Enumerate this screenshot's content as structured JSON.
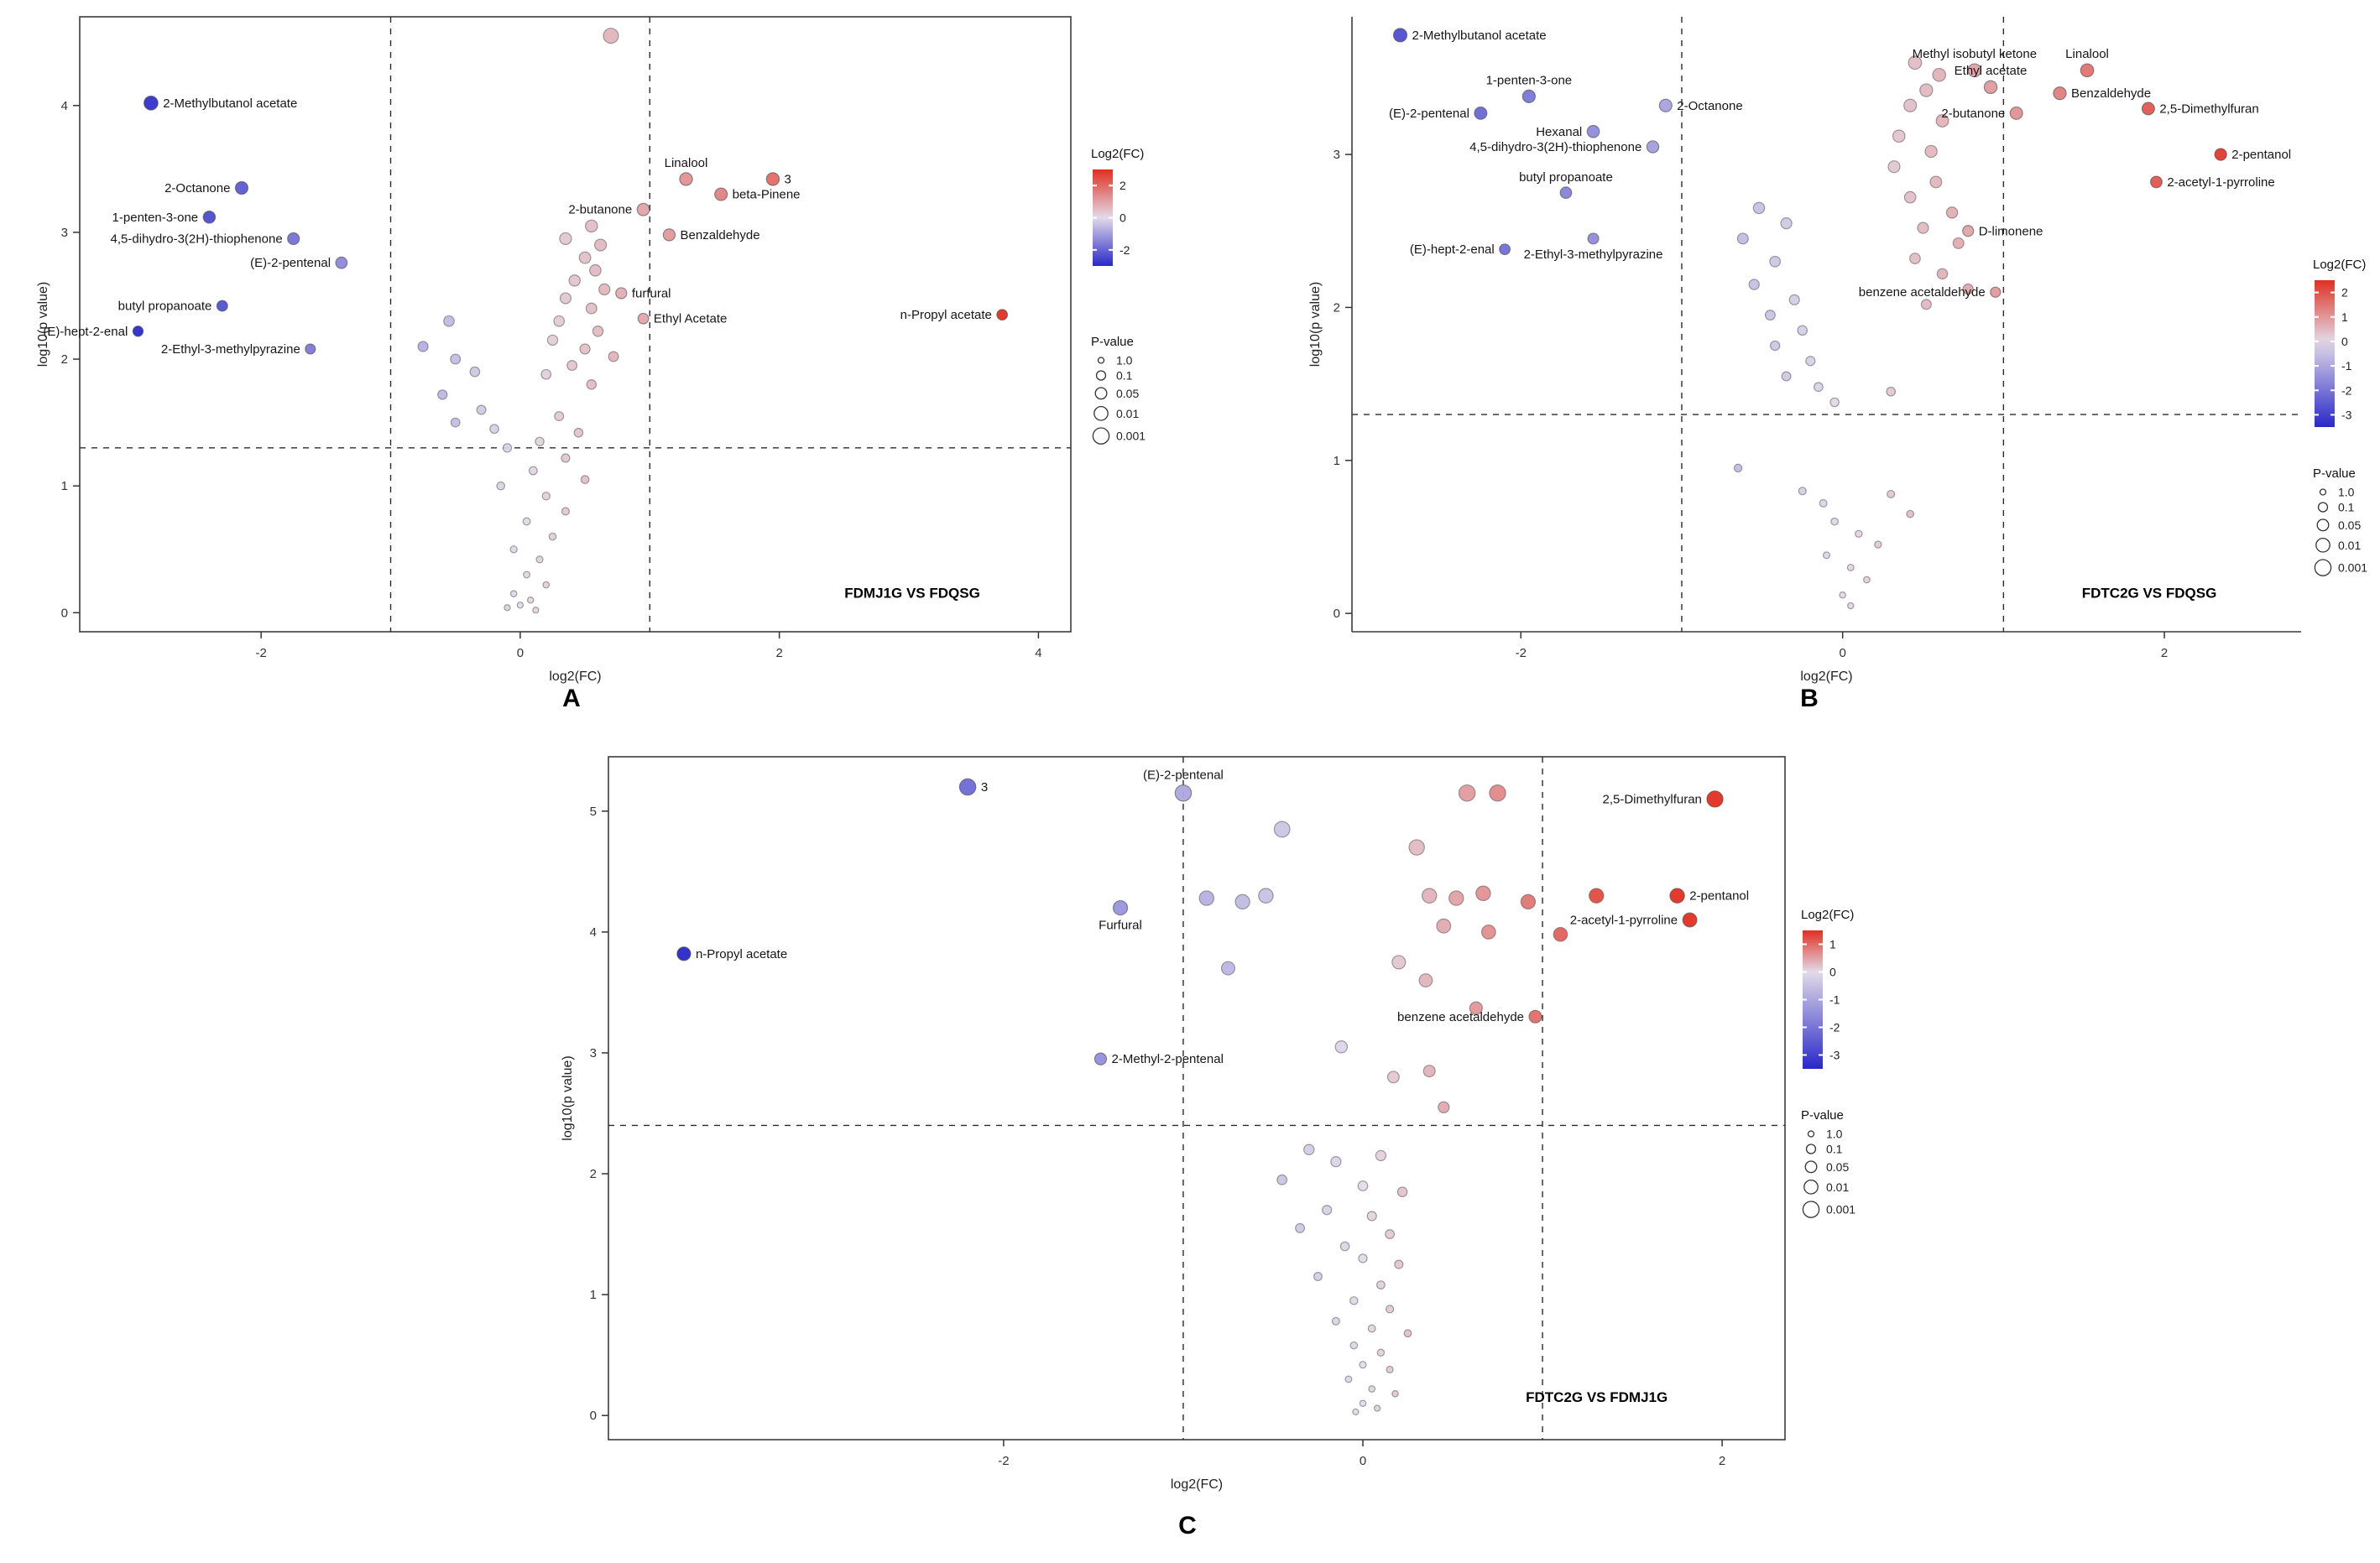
{
  "figure_background": "#ffffff",
  "color_scale": {
    "high": "#e03022",
    "mid": "#e2dae8",
    "low": "#2828c8"
  },
  "chart_data": [
    {
      "type": "scatter",
      "letter": "A",
      "title": "FDMJ1G VS FDQSG",
      "xlabel": "log2(FC)",
      "ylabel": "log10(p value)",
      "xlim": [
        -3.4,
        4.25
      ],
      "ylim": [
        -0.15,
        4.7
      ],
      "xticks": [
        -2,
        0,
        2,
        4
      ],
      "yticks": [
        0,
        1,
        2,
        3,
        4
      ],
      "vlines": [
        -1,
        1
      ],
      "hline": 1.3,
      "box": true,
      "color_domain": [
        -3,
        3
      ],
      "legend": {
        "color_title": "Log2(FC)",
        "color_ticks": [
          2,
          0,
          -2
        ],
        "size_title": "P-value",
        "size_ticks": [
          "1.0",
          "0.1",
          "0.05",
          "0.01",
          "0.001"
        ]
      },
      "labeled_points": [
        {
          "x": -2.85,
          "y": 4.02,
          "label": "2-Methylbutanol acetate",
          "pos": "right"
        },
        {
          "x": -2.15,
          "y": 3.35,
          "label": "2-Octanone",
          "pos": "left"
        },
        {
          "x": -2.4,
          "y": 3.12,
          "label": "1-penten-3-one",
          "pos": "left"
        },
        {
          "x": -1.75,
          "y": 2.95,
          "label": "4,5-dihydro-3(2H)-thiophenone",
          "pos": "left"
        },
        {
          "x": -1.38,
          "y": 2.76,
          "label": "(E)-2-pentenal",
          "pos": "left"
        },
        {
          "x": -2.3,
          "y": 2.42,
          "label": "butyl propanoate",
          "pos": "left"
        },
        {
          "x": -2.95,
          "y": 2.22,
          "label": "(E)-hept-2-enal",
          "pos": "left"
        },
        {
          "x": -1.62,
          "y": 2.08,
          "label": "2-Ethyl-3-methylpyrazine",
          "pos": "left"
        },
        {
          "x": 1.28,
          "y": 3.42,
          "label": "Linalool",
          "pos": "top"
        },
        {
          "x": 1.55,
          "y": 3.3,
          "label": "beta-Pinene",
          "pos": "right"
        },
        {
          "x": 0.95,
          "y": 3.18,
          "label": "2-butanone",
          "pos": "left"
        },
        {
          "x": 1.15,
          "y": 2.98,
          "label": "Benzaldehyde",
          "pos": "right"
        },
        {
          "x": 0.78,
          "y": 2.52,
          "label": "furfural",
          "pos": "right"
        },
        {
          "x": 0.95,
          "y": 2.32,
          "label": "Ethyl Acetate",
          "pos": "right"
        },
        {
          "x": 3.72,
          "y": 2.35,
          "label": "n-Propyl acetate",
          "pos": "left"
        },
        {
          "x": 1.95,
          "y": 3.42,
          "label": "3",
          "pos": "right"
        }
      ],
      "points": [
        [
          0.7,
          4.55
        ],
        [
          0.55,
          3.05
        ],
        [
          0.35,
          2.95
        ],
        [
          0.62,
          2.9
        ],
        [
          0.5,
          2.8
        ],
        [
          0.58,
          2.7
        ],
        [
          0.42,
          2.62
        ],
        [
          0.65,
          2.55
        ],
        [
          0.35,
          2.48
        ],
        [
          0.55,
          2.4
        ],
        [
          0.3,
          2.3
        ],
        [
          0.6,
          2.22
        ],
        [
          0.25,
          2.15
        ],
        [
          0.5,
          2.08
        ],
        [
          0.72,
          2.02
        ],
        [
          0.4,
          1.95
        ],
        [
          0.2,
          1.88
        ],
        [
          0.55,
          1.8
        ],
        [
          -0.55,
          2.3
        ],
        [
          -0.75,
          2.1
        ],
        [
          -0.5,
          2.0
        ],
        [
          -0.35,
          1.9
        ],
        [
          -0.6,
          1.72
        ],
        [
          -0.3,
          1.6
        ],
        [
          -0.5,
          1.5
        ],
        [
          -0.2,
          1.45
        ],
        [
          0.3,
          1.55
        ],
        [
          0.45,
          1.42
        ],
        [
          0.15,
          1.35
        ],
        [
          -0.1,
          1.3
        ],
        [
          0.35,
          1.22
        ],
        [
          0.1,
          1.12
        ],
        [
          0.5,
          1.05
        ],
        [
          -0.15,
          1.0
        ],
        [
          0.2,
          0.92
        ],
        [
          0.35,
          0.8
        ],
        [
          0.05,
          0.72
        ],
        [
          0.25,
          0.6
        ],
        [
          -0.05,
          0.5
        ],
        [
          0.15,
          0.42
        ],
        [
          0.05,
          0.3
        ],
        [
          0.2,
          0.22
        ],
        [
          -0.05,
          0.15
        ],
        [
          0.08,
          0.1
        ],
        [
          0.0,
          0.06
        ],
        [
          -0.1,
          0.04
        ],
        [
          0.12,
          0.02
        ]
      ]
    },
    {
      "type": "scatter",
      "letter": "B",
      "title": "FDTC2G VS FDQSG",
      "xlabel": "log2(FC)",
      "ylabel": "log10(p value)",
      "xlim": [
        -3.05,
        2.85
      ],
      "ylim": [
        -0.12,
        3.9
      ],
      "xticks": [
        -2,
        0,
        2
      ],
      "yticks": [
        0,
        1,
        2,
        3
      ],
      "vlines": [
        -1,
        1
      ],
      "hline": 1.3,
      "box": false,
      "color_domain": [
        -3.5,
        2.5
      ],
      "legend": {
        "color_title": "Log2(FC)",
        "color_ticks": [
          2,
          1,
          0,
          -1,
          -2,
          -3
        ],
        "size_title": "P-value",
        "size_ticks": [
          "1.0",
          "0.1",
          "0.05",
          "0.01",
          "0.001"
        ]
      },
      "labeled_points": [
        {
          "x": -2.75,
          "y": 3.78,
          "label": "2-Methylbutanol acetate",
          "pos": "right"
        },
        {
          "x": -1.95,
          "y": 3.38,
          "label": "1-penten-3-one",
          "pos": "top"
        },
        {
          "x": -2.25,
          "y": 3.27,
          "label": "(E)-2-pentenal",
          "pos": "left"
        },
        {
          "x": -1.1,
          "y": 3.32,
          "label": "2-Octanone",
          "pos": "right"
        },
        {
          "x": -1.55,
          "y": 3.15,
          "label": "Hexanal",
          "pos": "left"
        },
        {
          "x": -1.18,
          "y": 3.05,
          "label": "4,5-dihydro-3(2H)-thiophenone",
          "pos": "left"
        },
        {
          "x": -1.72,
          "y": 2.75,
          "label": "butyl propanoate",
          "pos": "top"
        },
        {
          "x": -1.55,
          "y": 2.45,
          "label": "2-Ethyl-3-methylpyrazine",
          "pos": "bottom"
        },
        {
          "x": -2.1,
          "y": 2.38,
          "label": "(E)-hept-2-enal",
          "pos": "left"
        },
        {
          "x": 0.82,
          "y": 3.55,
          "label": "Methyl isobutyl ketone",
          "pos": "top"
        },
        {
          "x": 1.52,
          "y": 3.55,
          "label": "Linalool",
          "pos": "top"
        },
        {
          "x": 0.92,
          "y": 3.44,
          "label": "Ethyl acetate",
          "pos": "top"
        },
        {
          "x": 1.35,
          "y": 3.4,
          "label": "Benzaldehyde",
          "pos": "right"
        },
        {
          "x": 1.08,
          "y": 3.27,
          "label": "2-butanone",
          "pos": "left"
        },
        {
          "x": 1.9,
          "y": 3.3,
          "label": "2,5-Dimethylfuran",
          "pos": "right"
        },
        {
          "x": 2.35,
          "y": 3.0,
          "label": "2-pentanol",
          "pos": "right"
        },
        {
          "x": 1.95,
          "y": 2.82,
          "label": "2-acetyl-1-pyrroline",
          "pos": "right"
        },
        {
          "x": 0.78,
          "y": 2.5,
          "label": "D-limonene",
          "pos": "right"
        },
        {
          "x": 0.95,
          "y": 2.1,
          "label": "benzene acetaldehyde",
          "pos": "left"
        }
      ],
      "points": [
        [
          0.45,
          3.6
        ],
        [
          0.6,
          3.52
        ],
        [
          0.52,
          3.42
        ],
        [
          0.42,
          3.32
        ],
        [
          0.62,
          3.22
        ],
        [
          0.35,
          3.12
        ],
        [
          0.55,
          3.02
        ],
        [
          0.32,
          2.92
        ],
        [
          0.58,
          2.82
        ],
        [
          0.42,
          2.72
        ],
        [
          0.68,
          2.62
        ],
        [
          0.5,
          2.52
        ],
        [
          0.72,
          2.42
        ],
        [
          0.45,
          2.32
        ],
        [
          0.62,
          2.22
        ],
        [
          0.78,
          2.12
        ],
        [
          0.52,
          2.02
        ],
        [
          -0.52,
          2.65
        ],
        [
          -0.35,
          2.55
        ],
        [
          -0.62,
          2.45
        ],
        [
          -0.42,
          2.3
        ],
        [
          -0.55,
          2.15
        ],
        [
          -0.3,
          2.05
        ],
        [
          -0.45,
          1.95
        ],
        [
          -0.25,
          1.85
        ],
        [
          -0.42,
          1.75
        ],
        [
          -0.2,
          1.65
        ],
        [
          -0.35,
          1.55
        ],
        [
          -0.15,
          1.48
        ],
        [
          0.3,
          1.45
        ],
        [
          -0.05,
          1.38
        ],
        [
          -0.65,
          0.95
        ],
        [
          -0.25,
          0.8
        ],
        [
          -0.12,
          0.72
        ],
        [
          0.3,
          0.78
        ],
        [
          0.42,
          0.65
        ],
        [
          -0.05,
          0.6
        ],
        [
          0.1,
          0.52
        ],
        [
          0.22,
          0.45
        ],
        [
          -0.1,
          0.38
        ],
        [
          0.05,
          0.3
        ],
        [
          0.15,
          0.22
        ],
        [
          0.0,
          0.12
        ],
        [
          0.05,
          0.05
        ]
      ]
    },
    {
      "type": "scatter",
      "letter": "C",
      "title": "FDTC2G VS FDMJ1G",
      "xlabel": "log2(FC)",
      "ylabel": "log10(p value)",
      "xlim": [
        -4.2,
        2.35
      ],
      "ylim": [
        -0.2,
        5.45
      ],
      "xticks": [
        -2,
        0,
        2
      ],
      "yticks": [
        0,
        1,
        2,
        3,
        4,
        5
      ],
      "vlines": [
        -1,
        1
      ],
      "hline": 2.4,
      "box": true,
      "color_domain": [
        -3.5,
        1.5
      ],
      "legend": {
        "color_title": "Log2(FC)",
        "color_ticks": [
          1,
          0,
          -1,
          -2,
          -3
        ],
        "size_title": "P-value",
        "size_ticks": [
          "1.0",
          "0.1",
          "0.05",
          "0.01",
          "0.001"
        ]
      },
      "labeled_points": [
        {
          "x": -2.2,
          "y": 5.2,
          "label": "3",
          "pos": "right"
        },
        {
          "x": -1.0,
          "y": 5.15,
          "label": "(E)-2-pentenal",
          "pos": "top"
        },
        {
          "x": 1.96,
          "y": 5.1,
          "label": "2,5-Dimethylfuran",
          "pos": "left"
        },
        {
          "x": -1.35,
          "y": 4.2,
          "label": "Furfural",
          "pos": "bottom"
        },
        {
          "x": -3.78,
          "y": 3.82,
          "label": "n-Propyl acetate",
          "pos": "right"
        },
        {
          "x": 1.75,
          "y": 4.3,
          "label": "2-pentanol",
          "pos": "right"
        },
        {
          "x": 1.82,
          "y": 4.1,
          "label": "2-acetyl-1-pyrroline",
          "pos": "left"
        },
        {
          "x": -1.46,
          "y": 2.95,
          "label": "2-Methyl-2-pentenal",
          "pos": "right"
        },
        {
          "x": 0.96,
          "y": 3.3,
          "label": "benzene acetaldehyde",
          "pos": "left"
        }
      ],
      "points": [
        [
          0.58,
          5.15
        ],
        [
          0.75,
          5.15
        ],
        [
          -0.45,
          4.85
        ],
        [
          0.3,
          4.7
        ],
        [
          -0.87,
          4.28
        ],
        [
          -0.67,
          4.25
        ],
        [
          -0.54,
          4.3
        ],
        [
          0.37,
          4.3
        ],
        [
          0.52,
          4.28
        ],
        [
          0.67,
          4.32
        ],
        [
          0.92,
          4.25
        ],
        [
          1.3,
          4.3
        ],
        [
          0.45,
          4.05
        ],
        [
          0.7,
          4.0
        ],
        [
          1.1,
          3.98
        ],
        [
          -0.75,
          3.7
        ],
        [
          0.2,
          3.75
        ],
        [
          0.35,
          3.6
        ],
        [
          0.63,
          3.37
        ],
        [
          -0.12,
          3.05
        ],
        [
          0.17,
          2.8
        ],
        [
          0.37,
          2.85
        ],
        [
          0.45,
          2.55
        ],
        [
          -0.3,
          2.2
        ],
        [
          -0.15,
          2.1
        ],
        [
          0.1,
          2.15
        ],
        [
          -0.45,
          1.95
        ],
        [
          0.0,
          1.9
        ],
        [
          0.22,
          1.85
        ],
        [
          -0.2,
          1.7
        ],
        [
          0.05,
          1.65
        ],
        [
          -0.35,
          1.55
        ],
        [
          0.15,
          1.5
        ],
        [
          -0.1,
          1.4
        ],
        [
          0.0,
          1.3
        ],
        [
          0.2,
          1.25
        ],
        [
          -0.25,
          1.15
        ],
        [
          0.1,
          1.08
        ],
        [
          -0.05,
          0.95
        ],
        [
          0.15,
          0.88
        ],
        [
          -0.15,
          0.78
        ],
        [
          0.05,
          0.72
        ],
        [
          0.25,
          0.68
        ],
        [
          -0.05,
          0.58
        ],
        [
          0.1,
          0.52
        ],
        [
          0.0,
          0.42
        ],
        [
          0.15,
          0.38
        ],
        [
          -0.08,
          0.3
        ],
        [
          0.05,
          0.22
        ],
        [
          0.18,
          0.18
        ],
        [
          0.0,
          0.1
        ],
        [
          0.08,
          0.06
        ],
        [
          -0.04,
          0.03
        ]
      ]
    }
  ]
}
